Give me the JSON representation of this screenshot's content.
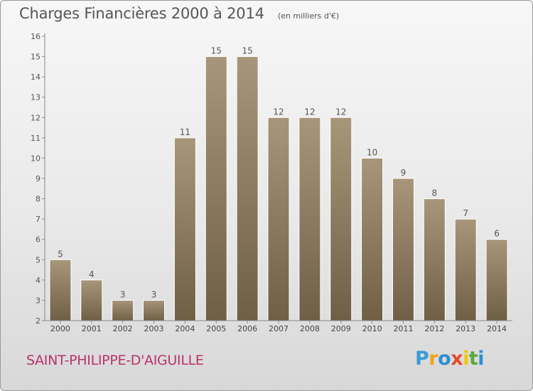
{
  "header": {
    "title": "Charges Financières 2000 à 2014",
    "unit": "(en milliers d'€)"
  },
  "footer": {
    "town": "SAINT-PHILIPPE-D'AIGUILLE",
    "logo_letters": [
      "P",
      "r",
      "o",
      "x",
      "i",
      "t",
      "i"
    ],
    "logo_colors": [
      "#3a9bd6",
      "#f0a21a",
      "#2d8fd0",
      "#e64a2a",
      "#f5c400",
      "#59a83a",
      "#2e8fd3"
    ]
  },
  "chart_data": {
    "type": "bar",
    "title": "Charges Financières 2000 à 2014",
    "subtitle": "(en milliers d'€)",
    "categories": [
      "2000",
      "2001",
      "2002",
      "2003",
      "2004",
      "2005",
      "2006",
      "2007",
      "2008",
      "2009",
      "2010",
      "2011",
      "2012",
      "2013",
      "2014"
    ],
    "values": [
      5,
      4,
      3,
      3,
      11,
      15,
      15,
      12,
      12,
      12,
      10,
      9,
      8,
      7,
      6
    ],
    "ylim": [
      2,
      16
    ],
    "yticks": [
      "2",
      "3",
      "4",
      "5",
      "6",
      "7",
      "8",
      "9",
      "10",
      "11",
      "12",
      "13",
      "14",
      "15",
      "16"
    ],
    "xlabel": "",
    "ylabel": "",
    "grid": false,
    "bar_color": "#8c7a5c"
  }
}
